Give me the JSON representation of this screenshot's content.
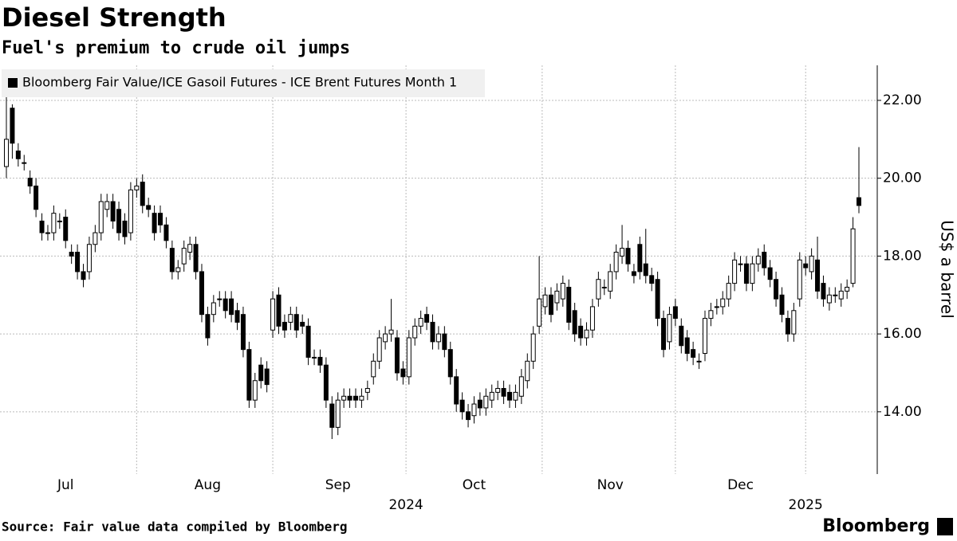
{
  "chart_data": {
    "type": "candlestick",
    "title": "Diesel Strength",
    "subtitle": "Fuel's premium to crude oil jumps",
    "series_name": "Bloomberg Fair Value/ICE Gasoil Futures - ICE Brent Futures Month 1",
    "legend_color": "#000000",
    "up_color": "#ffffff",
    "down_color": "#000000",
    "y_axis_label": "US$ a barrel",
    "source": "Source: Fair value data compiled by Bloomberg",
    "brand": "Bloomberg",
    "year_labels": [
      "2024",
      "2025"
    ],
    "ylim": [
      12.4,
      22.9
    ],
    "yticks": [
      {
        "value": 14,
        "label": "14.00"
      },
      {
        "value": 16,
        "label": "16.00"
      },
      {
        "value": 18,
        "label": "18.00"
      },
      {
        "value": 20,
        "label": "20.00"
      },
      {
        "value": 22,
        "label": "22.00"
      }
    ],
    "grid": true,
    "categories": [
      null,
      null,
      null,
      null,
      null,
      null,
      null,
      null,
      null,
      null,
      "Jul",
      null,
      null,
      null,
      null,
      null,
      null,
      null,
      null,
      null,
      null,
      null,
      null,
      null,
      null,
      null,
      null,
      null,
      null,
      null,
      null,
      null,
      null,
      null,
      "Aug",
      null,
      null,
      null,
      null,
      null,
      null,
      null,
      null,
      null,
      null,
      null,
      null,
      null,
      null,
      null,
      null,
      null,
      null,
      null,
      null,
      null,
      "Sep",
      null,
      null,
      null,
      null,
      null,
      null,
      null,
      null,
      null,
      null,
      null,
      null,
      null,
      null,
      null,
      null,
      null,
      null,
      null,
      null,
      null,
      null,
      "Oct",
      null,
      null,
      null,
      null,
      null,
      null,
      null,
      null,
      null,
      null,
      null,
      null,
      null,
      null,
      null,
      null,
      null,
      null,
      null,
      null,
      null,
      null,
      "Nov",
      null,
      null,
      null,
      null,
      null,
      null,
      null,
      null,
      null,
      null,
      null,
      null,
      null,
      null,
      null,
      null,
      null,
      null,
      null,
      null,
      null,
      "Dec",
      null,
      null,
      null,
      null,
      null,
      null,
      null,
      null,
      null,
      null,
      null,
      null,
      null,
      null,
      null,
      null,
      null,
      null,
      null,
      null
    ],
    "open": [
      20.3,
      21.8,
      20.7,
      20.4,
      20.0,
      19.8,
      18.9,
      18.6,
      18.6,
      18.9,
      19.0,
      18.1,
      18.1,
      17.6,
      17.6,
      18.3,
      18.6,
      19.2,
      19.4,
      19.2,
      18.9,
      18.6,
      19.7,
      19.9,
      19.3,
      19.1,
      19.1,
      18.8,
      18.2,
      17.6,
      17.8,
      18.1,
      18.3,
      17.6,
      16.5,
      16.5,
      16.9,
      16.9,
      16.9,
      16.6,
      16.5,
      15.6,
      14.3,
      15.2,
      15.1,
      16.1,
      17.0,
      16.3,
      16.3,
      16.5,
      16.3,
      16.2,
      15.4,
      15.4,
      15.2,
      14.2,
      13.6,
      14.3,
      14.4,
      14.4,
      14.3,
      14.5,
      14.9,
      15.3,
      15.8,
      16.0,
      15.9,
      15.1,
      14.9,
      15.9,
      16.2,
      16.5,
      16.3,
      15.8,
      16.0,
      15.6,
      14.9,
      14.3,
      14.0,
      13.9,
      14.3,
      14.1,
      14.3,
      14.5,
      14.6,
      14.5,
      14.3,
      14.4,
      14.8,
      15.3,
      16.2,
      16.7,
      17.0,
      16.8,
      16.9,
      17.2,
      16.6,
      16.2,
      15.9,
      16.1,
      16.9,
      17.2,
      17.1,
      17.6,
      18.0,
      18.2,
      17.6,
      18.3,
      17.8,
      17.5,
      17.4,
      16.4,
      15.8,
      16.7,
      16.2,
      15.9,
      15.6,
      15.3,
      15.5,
      16.4,
      16.7,
      16.7,
      16.9,
      17.3,
      17.8,
      17.8,
      17.3,
      17.8,
      18.1,
      17.7,
      17.4,
      17.0,
      16.4,
      16.0,
      16.9,
      17.8,
      17.6,
      17.9,
      17.3,
      16.8,
      17.0,
      16.9,
      17.1,
      17.3,
      19.5
    ],
    "high": [
      22.1,
      21.9,
      20.9,
      20.6,
      20.2,
      20.0,
      19.1,
      18.8,
      19.3,
      19.1,
      19.2,
      18.3,
      18.3,
      17.8,
      18.5,
      18.8,
      19.6,
      19.6,
      19.6,
      19.4,
      19.1,
      19.9,
      20.0,
      20.1,
      19.5,
      19.3,
      19.3,
      19.0,
      18.4,
      17.9,
      18.4,
      18.5,
      18.5,
      17.8,
      16.7,
      17.0,
      17.1,
      17.1,
      17.1,
      16.8,
      16.7,
      15.8,
      15.0,
      15.4,
      15.3,
      17.1,
      17.2,
      16.5,
      16.7,
      16.7,
      16.5,
      16.4,
      15.6,
      15.6,
      15.4,
      14.4,
      14.5,
      14.6,
      14.6,
      14.6,
      14.6,
      14.8,
      15.5,
      16.1,
      16.2,
      16.9,
      16.1,
      15.3,
      16.1,
      16.4,
      16.6,
      16.7,
      16.5,
      16.2,
      16.2,
      15.8,
      15.1,
      14.5,
      14.2,
      14.4,
      14.5,
      14.6,
      14.7,
      14.8,
      14.8,
      14.7,
      14.7,
      15.1,
      15.5,
      16.2,
      18.0,
      17.2,
      17.2,
      17.3,
      17.5,
      17.4,
      16.8,
      16.4,
      16.3,
      16.9,
      17.6,
      17.4,
      17.8,
      18.3,
      18.8,
      18.4,
      17.8,
      18.5,
      18.7,
      17.7,
      17.6,
      16.6,
      16.7,
      16.9,
      16.4,
      16.1,
      15.8,
      15.5,
      16.6,
      16.8,
      16.9,
      17.1,
      17.5,
      18.1,
      18.0,
      18.0,
      18.0,
      18.2,
      18.3,
      17.9,
      17.6,
      17.2,
      16.6,
      16.8,
      18.1,
      18.0,
      18.2,
      18.5,
      17.5,
      17.2,
      17.2,
      17.3,
      17.4,
      19.0,
      20.8
    ],
    "low": [
      20.0,
      20.5,
      20.3,
      20.2,
      19.6,
      19.0,
      18.4,
      18.4,
      18.4,
      18.7,
      18.2,
      17.8,
      17.4,
      17.2,
      17.4,
      18.1,
      18.4,
      19.0,
      18.7,
      18.4,
      18.3,
      18.4,
      19.5,
      19.1,
      19.0,
      18.4,
      18.6,
      18.2,
      17.4,
      17.4,
      17.6,
      17.9,
      17.4,
      16.3,
      15.7,
      16.3,
      16.7,
      16.4,
      16.3,
      16.1,
      15.4,
      14.1,
      14.1,
      14.6,
      14.5,
      15.9,
      16.0,
      15.9,
      16.1,
      15.9,
      16.0,
      15.2,
      15.2,
      15.0,
      14.1,
      13.3,
      13.4,
      14.1,
      14.1,
      14.1,
      14.1,
      14.3,
      14.7,
      15.1,
      15.6,
      15.8,
      14.8,
      14.7,
      14.7,
      15.7,
      16.0,
      16.1,
      15.6,
      15.6,
      15.4,
      14.7,
      14.0,
      13.8,
      13.6,
      13.7,
      13.9,
      13.9,
      14.1,
      14.3,
      14.2,
      14.1,
      14.1,
      14.2,
      14.6,
      15.1,
      16.0,
      16.5,
      16.3,
      16.6,
      16.7,
      16.1,
      15.8,
      15.7,
      15.7,
      15.9,
      16.7,
      17.0,
      16.9,
      17.4,
      17.8,
      17.6,
      17.3,
      17.4,
      17.3,
      17.1,
      16.2,
      15.4,
      15.6,
      16.2,
      15.5,
      15.3,
      15.2,
      15.1,
      15.3,
      16.2,
      16.5,
      16.5,
      16.7,
      17.1,
      17.6,
      17.1,
      17.1,
      17.6,
      17.5,
      17.2,
      16.7,
      16.3,
      15.8,
      15.8,
      16.7,
      17.5,
      17.4,
      16.9,
      16.7,
      16.6,
      16.8,
      16.7,
      16.9,
      17.2,
      19.1
    ],
    "close": [
      21.0,
      20.9,
      20.5,
      20.4,
      19.8,
      19.2,
      18.6,
      18.6,
      19.1,
      18.9,
      18.4,
      18.0,
      17.6,
      17.4,
      18.3,
      18.6,
      19.4,
      19.4,
      18.9,
      18.6,
      18.5,
      19.7,
      19.8,
      19.3,
      19.2,
      18.6,
      18.8,
      18.4,
      17.6,
      17.7,
      18.2,
      18.3,
      17.6,
      16.5,
      15.9,
      16.8,
      16.9,
      16.6,
      16.5,
      16.3,
      15.6,
      14.3,
      14.8,
      14.8,
      14.7,
      16.9,
      16.2,
      16.1,
      16.5,
      16.1,
      16.2,
      15.4,
      15.4,
      15.2,
      14.3,
      13.6,
      14.3,
      14.4,
      14.3,
      14.3,
      14.4,
      14.6,
      15.3,
      15.9,
      16.0,
      16.1,
      15.0,
      14.9,
      15.9,
      16.2,
      16.4,
      16.3,
      15.8,
      16.0,
      15.6,
      14.9,
      14.2,
      14.0,
      13.8,
      14.2,
      14.1,
      14.4,
      14.5,
      14.6,
      14.4,
      14.3,
      14.5,
      14.9,
      15.3,
      16.0,
      16.9,
      17.0,
      16.5,
      17.1,
      17.3,
      16.3,
      16.0,
      15.9,
      16.1,
      16.7,
      17.4,
      17.2,
      17.6,
      18.1,
      18.2,
      17.8,
      17.5,
      17.6,
      17.5,
      17.3,
      16.4,
      15.6,
      16.5,
      16.4,
      15.7,
      15.5,
      15.4,
      15.3,
      16.4,
      16.6,
      16.7,
      16.9,
      17.3,
      17.9,
      17.8,
      17.3,
      17.8,
      18.0,
      17.7,
      17.4,
      16.9,
      16.5,
      16.0,
      16.6,
      17.9,
      17.7,
      18.0,
      17.1,
      16.9,
      17.0,
      17.0,
      17.1,
      17.2,
      18.7,
      19.3
    ]
  }
}
